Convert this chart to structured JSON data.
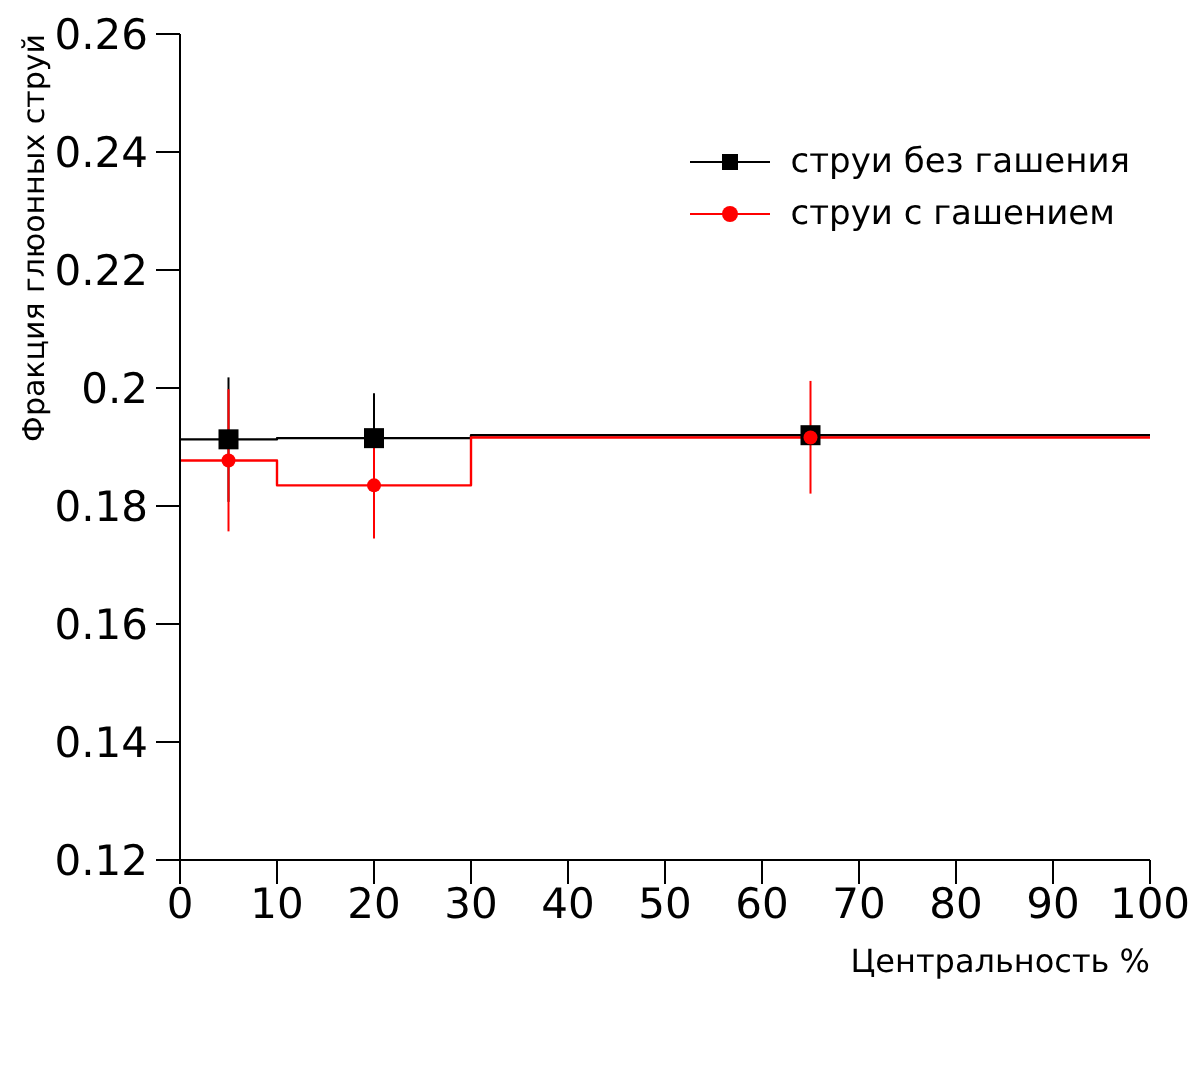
{
  "chart_data": {
    "type": "scatter",
    "xlabel": "Центральность %",
    "ylabel": "Фракция глюонных струй",
    "series": [
      {
        "type": "step",
        "color": "#000000",
        "x": [
          0,
          10,
          30,
          100
        ],
        "values": [
          0.1913,
          0.1915,
          0.192,
          0.192
        ]
      },
      {
        "type": "step",
        "color": "#ff0000",
        "x": [
          0,
          10,
          30,
          100
        ],
        "values": [
          0.1877,
          0.1835,
          0.1916,
          0.1916
        ]
      },
      {
        "name": "струи без гашения",
        "color": "#000000",
        "marker": "square",
        "x": [
          5,
          20,
          65
        ],
        "values": [
          0.1913,
          0.1915,
          0.192
        ],
        "errors": [
          [
            0.1807,
            0.2018
          ],
          [
            0.184,
            0.1991
          ],
          null
        ]
      },
      {
        "name": "струи с гашением",
        "color": "#ff0000",
        "marker": "circle",
        "x": [
          5,
          20,
          65
        ],
        "values": [
          0.1877,
          0.1835,
          0.1916
        ],
        "errors": [
          [
            0.1757,
            0.1998
          ],
          [
            0.1745,
            0.1927
          ],
          [
            0.1821,
            0.2012
          ]
        ]
      }
    ],
    "xlim": [
      0,
      100
    ],
    "xticks": [
      0,
      10,
      20,
      30,
      40,
      50,
      60,
      70,
      80,
      90,
      100
    ],
    "ylim": [
      0.12,
      0.26
    ],
    "yticks": [
      0.12,
      0.14,
      0.16,
      0.18,
      0.2,
      0.22,
      0.24,
      0.26
    ],
    "legend": "top right"
  }
}
